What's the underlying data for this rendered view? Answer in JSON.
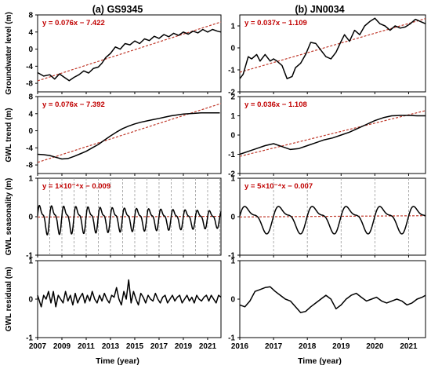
{
  "columns": [
    {
      "title": "(a) GS9345",
      "xlabel": "Time (year)",
      "xticks": [
        "2007",
        "2009",
        "2011",
        "2013",
        "2015",
        "2017",
        "2019",
        "2021"
      ]
    },
    {
      "title": "(b) JN0034",
      "xlabel": "Time (year)",
      "xticks": [
        "2016",
        "2017",
        "2018",
        "2019",
        "2020",
        "2021"
      ]
    }
  ],
  "row_labels": [
    "Groundwater level (m)",
    "GWL trend (m)",
    "GWL seasonality (m)",
    "GWL residual (m)"
  ],
  "colors": {
    "series": "#000000",
    "fit": "#c0392b",
    "equation": "#c00000",
    "grid": "#9a9a9a"
  },
  "chart_data": [
    {
      "id": "a1",
      "type": "line",
      "ylabel": "Groundwater level (m)",
      "xlim": [
        2007,
        2022.1
      ],
      "ylim": [
        -10,
        8
      ],
      "yticks": [
        -8,
        -4,
        0,
        4,
        8
      ],
      "fit": {
        "slope": 0.076,
        "intercept": -7.422
      },
      "equation": "y = 0.076x − 7.422",
      "x": [
        2007.0,
        2007.5,
        2008.0,
        2008.4,
        2008.8,
        2009.2,
        2009.6,
        2010.0,
        2010.4,
        2010.8,
        2011.2,
        2011.6,
        2012.0,
        2012.3,
        2012.6,
        2013.0,
        2013.4,
        2013.8,
        2014.2,
        2014.6,
        2015.0,
        2015.4,
        2015.8,
        2016.2,
        2016.6,
        2017.0,
        2017.4,
        2017.8,
        2018.2,
        2018.6,
        2019.0,
        2019.4,
        2019.8,
        2020.2,
        2020.6,
        2021.0,
        2021.4,
        2021.8,
        2022.1
      ],
      "y": [
        -5.5,
        -6.3,
        -6.0,
        -7.0,
        -5.8,
        -6.6,
        -7.4,
        -6.6,
        -6.0,
        -5.1,
        -5.6,
        -4.5,
        -4.2,
        -3.3,
        -2.0,
        -1.0,
        0.5,
        0.0,
        1.3,
        1.0,
        1.9,
        1.3,
        2.4,
        2.0,
        3.0,
        2.5,
        3.4,
        2.9,
        3.7,
        3.2,
        4.0,
        3.5,
        4.2,
        3.8,
        4.6,
        4.0,
        4.6,
        4.2,
        4.0
      ]
    },
    {
      "id": "a2",
      "type": "line",
      "ylabel": "GWL trend (m)",
      "xlim": [
        2007,
        2022.1
      ],
      "ylim": [
        -10,
        8
      ],
      "yticks": [
        -8,
        -4,
        0,
        4,
        8
      ],
      "fit": {
        "slope": 0.076,
        "intercept": -7.392
      },
      "equation": "y = 0.076x − 7.392",
      "x": [
        2007.0,
        2007.5,
        2008.0,
        2008.5,
        2009.0,
        2009.5,
        2010.0,
        2010.5,
        2011.0,
        2011.5,
        2012.0,
        2012.5,
        2013.0,
        2013.5,
        2014.0,
        2014.5,
        2015.0,
        2015.5,
        2016.0,
        2016.5,
        2017.0,
        2017.5,
        2018.0,
        2018.5,
        2019.0,
        2019.5,
        2020.0,
        2020.5,
        2021.0,
        2021.5,
        2022.0
      ],
      "y": [
        -5.5,
        -5.6,
        -5.8,
        -6.2,
        -6.6,
        -6.5,
        -6.0,
        -5.4,
        -4.8,
        -4.0,
        -3.2,
        -2.2,
        -1.2,
        -0.3,
        0.5,
        1.1,
        1.6,
        2.0,
        2.3,
        2.6,
        2.9,
        3.2,
        3.5,
        3.7,
        3.9,
        4.0,
        4.1,
        4.2,
        4.2,
        4.2,
        4.2
      ]
    },
    {
      "id": "a3",
      "type": "line",
      "ylabel": "GWL seasonality (m)",
      "xlim": [
        2007,
        2022.1
      ],
      "ylim": [
        -1,
        1
      ],
      "yticks": [
        -1,
        0,
        1
      ],
      "fit": {
        "slope": 0.0001,
        "intercept": -0.009
      },
      "equation": "y = 1×10⁻⁴x − 0.009",
      "seasonal": {
        "start": 2007.0,
        "end": 2022.1,
        "period": 1,
        "amp_start": 0.38,
        "amp_end": 0.22
      },
      "vlines": [
        2008,
        2009,
        2010,
        2011,
        2012,
        2013,
        2014,
        2015,
        2016,
        2017,
        2018,
        2019,
        2020,
        2021,
        2022
      ]
    },
    {
      "id": "a4",
      "type": "line",
      "ylabel": "GWL residual (m)",
      "xlim": [
        2007,
        2022.1
      ],
      "ylim": [
        -1,
        1
      ],
      "yticks": [
        -1,
        0,
        1
      ],
      "x": [
        2007.0,
        2007.3,
        2007.5,
        2007.7,
        2007.9,
        2008.1,
        2008.3,
        2008.5,
        2008.7,
        2008.9,
        2009.1,
        2009.3,
        2009.5,
        2009.7,
        2009.9,
        2010.1,
        2010.3,
        2010.5,
        2010.7,
        2010.9,
        2011.1,
        2011.3,
        2011.5,
        2011.7,
        2011.9,
        2012.1,
        2012.3,
        2012.5,
        2012.7,
        2012.9,
        2013.1,
        2013.3,
        2013.5,
        2013.7,
        2013.9,
        2014.1,
        2014.3,
        2014.5,
        2014.7,
        2014.9,
        2015.1,
        2015.3,
        2015.5,
        2015.7,
        2015.9,
        2016.1,
        2016.3,
        2016.5,
        2016.7,
        2016.9,
        2017.1,
        2017.3,
        2017.5,
        2017.7,
        2017.9,
        2018.1,
        2018.3,
        2018.5,
        2018.7,
        2018.9,
        2019.1,
        2019.3,
        2019.5,
        2019.7,
        2019.9,
        2020.1,
        2020.3,
        2020.5,
        2020.7,
        2020.9,
        2021.1,
        2021.3,
        2021.5,
        2021.7,
        2021.9,
        2022.1
      ],
      "y": [
        0.1,
        -0.2,
        0.1,
        0.0,
        0.2,
        -0.1,
        0.2,
        -0.2,
        0.1,
        0.0,
        -0.1,
        0.2,
        -0.05,
        0.1,
        -0.15,
        0.15,
        -0.1,
        0.05,
        0.15,
        -0.1,
        0.1,
        -0.05,
        0.2,
        0.0,
        -0.1,
        0.1,
        -0.05,
        0.15,
        0.0,
        -0.1,
        0.1,
        0.05,
        0.3,
        0.0,
        -0.15,
        0.2,
        0.0,
        0.5,
        -0.1,
        0.2,
        0.0,
        -0.15,
        0.15,
        0.05,
        -0.1,
        0.1,
        0.0,
        -0.05,
        0.15,
        0.0,
        -0.1,
        0.05,
        0.1,
        -0.1,
        0.0,
        0.1,
        -0.05,
        0.05,
        0.1,
        -0.1,
        0.0,
        0.1,
        -0.05,
        0.05,
        -0.1,
        0.1,
        0.0,
        -0.05,
        0.05,
        0.1,
        -0.05,
        0.1,
        0.0,
        -0.1,
        0.1,
        0.05
      ]
    },
    {
      "id": "b1",
      "type": "line",
      "ylabel": "",
      "xlim": [
        2016.0,
        2021.5
      ],
      "ylim": [
        -2,
        1.5
      ],
      "yticks": [
        -2,
        -1,
        0,
        1
      ],
      "fit": {
        "slope": 0.037,
        "intercept": -1.109
      },
      "equation": "y = 0.037x − 1.109",
      "x": [
        2016.0,
        2016.1,
        2016.25,
        2016.35,
        2016.5,
        2016.6,
        2016.75,
        2016.9,
        2017.0,
        2017.1,
        2017.25,
        2017.4,
        2017.55,
        2017.65,
        2017.8,
        2017.95,
        2018.1,
        2018.25,
        2018.4,
        2018.55,
        2018.7,
        2018.85,
        2019.0,
        2019.1,
        2019.25,
        2019.4,
        2019.55,
        2019.7,
        2019.85,
        2020.0,
        2020.15,
        2020.3,
        2020.45,
        2020.6,
        2020.75,
        2020.9,
        2021.05,
        2021.2,
        2021.35,
        2021.5
      ],
      "y": [
        -1.4,
        -1.2,
        -0.4,
        -0.5,
        -0.3,
        -0.6,
        -0.3,
        -0.6,
        -0.5,
        -0.6,
        -0.8,
        -1.4,
        -1.3,
        -0.9,
        -0.7,
        -0.3,
        0.25,
        0.2,
        -0.1,
        -0.4,
        -0.5,
        -0.2,
        0.3,
        0.6,
        0.3,
        0.8,
        0.6,
        1.0,
        1.2,
        1.35,
        1.1,
        1.0,
        0.8,
        1.0,
        0.9,
        0.95,
        1.1,
        1.3,
        1.2,
        1.1
      ]
    },
    {
      "id": "b2",
      "type": "line",
      "ylabel": "",
      "xlim": [
        2016.0,
        2021.5
      ],
      "ylim": [
        -2,
        2
      ],
      "yticks": [
        -2,
        -1,
        0,
        1,
        2
      ],
      "fit": {
        "slope": 0.036,
        "intercept": -1.108
      },
      "equation": "y = 0.036x − 1.108",
      "x": [
        2016.0,
        2016.25,
        2016.5,
        2016.75,
        2017.0,
        2017.25,
        2017.5,
        2017.75,
        2018.0,
        2018.25,
        2018.5,
        2018.75,
        2019.0,
        2019.25,
        2019.5,
        2019.75,
        2020.0,
        2020.25,
        2020.5,
        2020.75,
        2021.0,
        2021.25,
        2021.5
      ],
      "y": [
        -1.0,
        -0.85,
        -0.7,
        -0.55,
        -0.45,
        -0.6,
        -0.75,
        -0.7,
        -0.55,
        -0.4,
        -0.25,
        -0.15,
        0.0,
        0.15,
        0.35,
        0.55,
        0.75,
        0.9,
        1.0,
        1.02,
        1.02,
        1.0,
        1.0
      ]
    },
    {
      "id": "b3",
      "type": "line",
      "ylabel": "",
      "xlim": [
        2016.0,
        2021.5
      ],
      "ylim": [
        -1,
        1
      ],
      "yticks": [
        -1,
        0,
        1
      ],
      "fit": {
        "slope": 0.0005,
        "intercept": -0.007
      },
      "equation": "y = 5×10⁻⁴x − 0.007",
      "seasonal": {
        "start": 2016.0,
        "end": 2021.5,
        "period": 1,
        "amp_start": 0.35,
        "amp_end": 0.35
      },
      "vlines": [
        2017,
        2018,
        2019,
        2020,
        2021
      ]
    },
    {
      "id": "b4",
      "type": "line",
      "ylabel": "",
      "xlim": [
        2016.0,
        2021.5
      ],
      "ylim": [
        -1,
        1
      ],
      "yticks": [
        -1,
        0,
        1
      ],
      "x": [
        2016.0,
        2016.15,
        2016.3,
        2016.45,
        2016.6,
        2016.75,
        2016.9,
        2017.05,
        2017.2,
        2017.35,
        2017.5,
        2017.65,
        2017.8,
        2017.95,
        2018.1,
        2018.25,
        2018.4,
        2018.55,
        2018.7,
        2018.85,
        2019.0,
        2019.15,
        2019.3,
        2019.45,
        2019.6,
        2019.75,
        2019.9,
        2020.05,
        2020.2,
        2020.35,
        2020.5,
        2020.65,
        2020.8,
        2020.95,
        2021.1,
        2021.25,
        2021.4,
        2021.5
      ],
      "y": [
        -0.15,
        -0.2,
        -0.05,
        0.2,
        0.25,
        0.3,
        0.32,
        0.2,
        0.1,
        0.0,
        -0.05,
        -0.2,
        -0.35,
        -0.32,
        -0.2,
        -0.1,
        0.0,
        0.1,
        0.0,
        -0.25,
        -0.15,
        0.0,
        0.1,
        0.15,
        0.05,
        -0.05,
        0.0,
        0.05,
        -0.05,
        -0.1,
        -0.05,
        0.0,
        -0.05,
        -0.15,
        -0.1,
        0.0,
        0.05,
        0.1
      ]
    }
  ]
}
